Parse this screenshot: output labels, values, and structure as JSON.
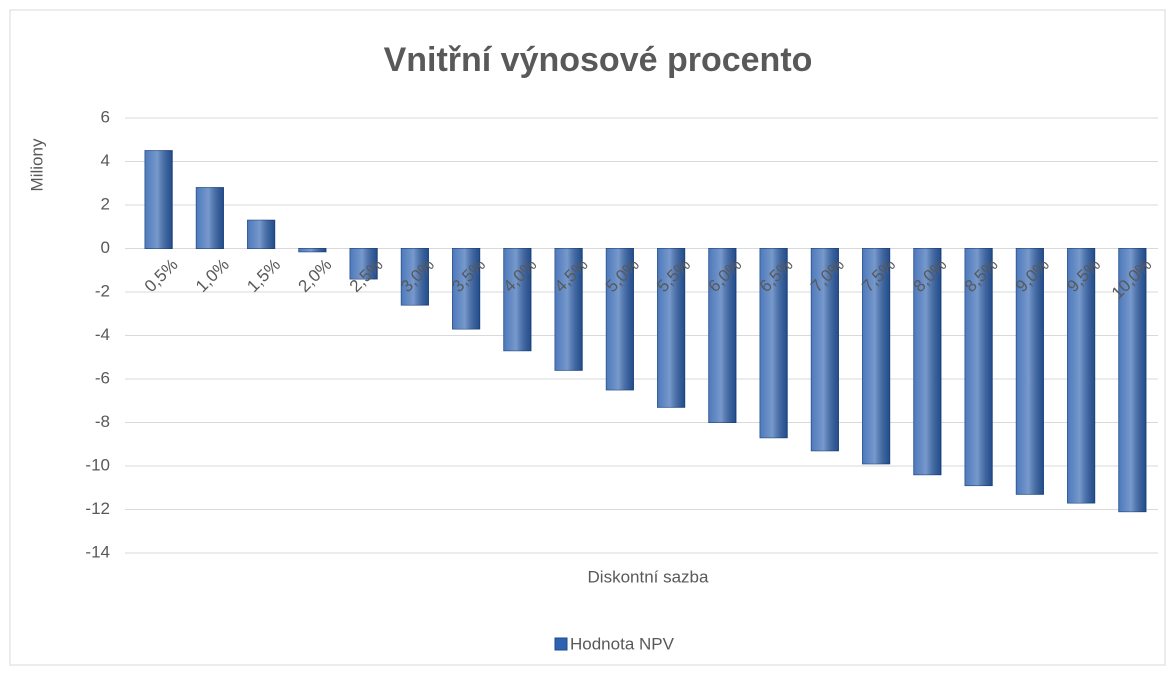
{
  "chart_data": {
    "type": "bar",
    "title": "Vnitřní výnosové procento",
    "y_label": "Miliony",
    "x_label": "Diskontní sazba",
    "categories": [
      "0,5%",
      "1,0%",
      "1,5%",
      "2,0%",
      "2,5%",
      "3,0%",
      "3,5%",
      "4,0%",
      "4,5%",
      "5,0%",
      "5,5%",
      "6,0%",
      "6,5%",
      "7,0%",
      "7,5%",
      "8,0%",
      "8,5%",
      "9,0%",
      "9,5%",
      "10,0%"
    ],
    "series": [
      {
        "name": "Hodnota NPV",
        "color": "#2e62b0",
        "values": [
          4.5,
          2.8,
          1.3,
          -0.15,
          -1.4,
          -2.6,
          -3.7,
          -4.7,
          -5.6,
          -6.5,
          -7.3,
          -8.0,
          -8.7,
          -9.3,
          -9.9,
          -10.4,
          -10.9,
          -11.3,
          -11.7,
          -12.1
        ]
      }
    ],
    "ylim": [
      -14,
      6
    ],
    "yticks": [
      -14,
      -12,
      -10,
      -8,
      -6,
      -4,
      -2,
      0,
      2,
      4,
      6
    ],
    "grid": true,
    "legend": "bottom"
  }
}
